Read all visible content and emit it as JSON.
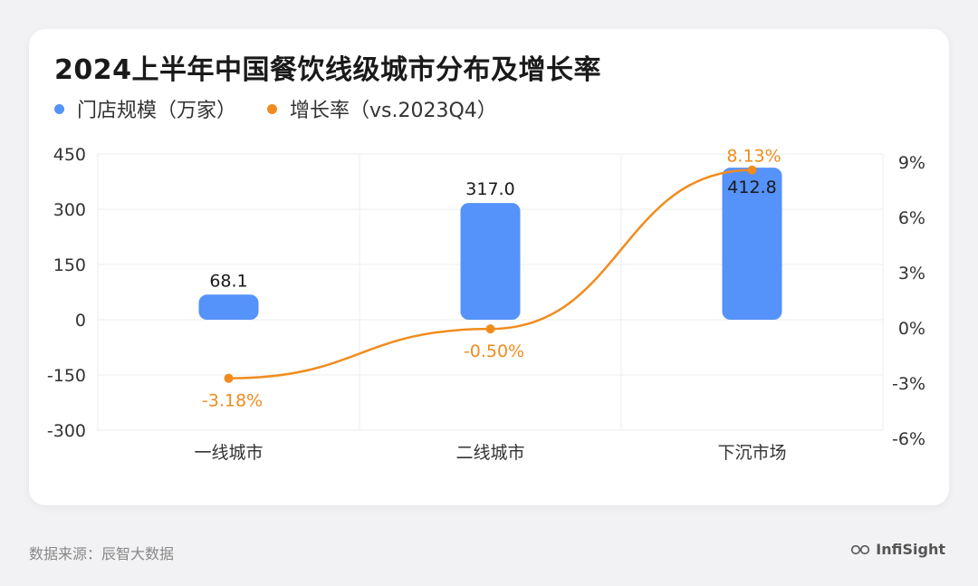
{
  "title": "2024上半年中国餐饮线级城市分布及增长率",
  "legend": {
    "bar_label": "门店规模（万家）",
    "line_label": "增长率（vs.2023Q4）"
  },
  "colors": {
    "bar": "#5592f9",
    "line": "#f08c1e",
    "grid": "#ececec",
    "text": "#333333"
  },
  "chart_data": {
    "type": "bar",
    "categories": [
      "一线城市",
      "二线城市",
      "下沉市场"
    ],
    "series": [
      {
        "name": "门店规模（万家）",
        "type": "bar",
        "axis": "left",
        "values": [
          68.1,
          317.0,
          412.8
        ],
        "labels": [
          "68.1",
          "317.0",
          "412.8"
        ]
      },
      {
        "name": "增长率（vs.2023Q4）",
        "type": "line",
        "axis": "right",
        "values": [
          -3.18,
          -0.5,
          8.13
        ],
        "labels": [
          "-3.18%",
          "-0.50%",
          "8.13%"
        ]
      }
    ],
    "y_left": {
      "range": [
        -300,
        450
      ],
      "ticks": [
        450,
        300,
        150,
        0,
        -150,
        -300
      ],
      "tick_labels": [
        "450",
        "300",
        "150",
        "0",
        "-150",
        "-300"
      ]
    },
    "y_right": {
      "range": [
        -6,
        9
      ],
      "ticks": [
        9,
        6,
        3,
        0,
        -3,
        -6
      ],
      "tick_labels": [
        "9%",
        "6%",
        "3%",
        "0%",
        "-3%",
        "-6%"
      ]
    },
    "grid": true,
    "legend_position": "top-left"
  },
  "footer": {
    "source": "数据来源：辰智大数据",
    "brand": "InfiSight"
  }
}
